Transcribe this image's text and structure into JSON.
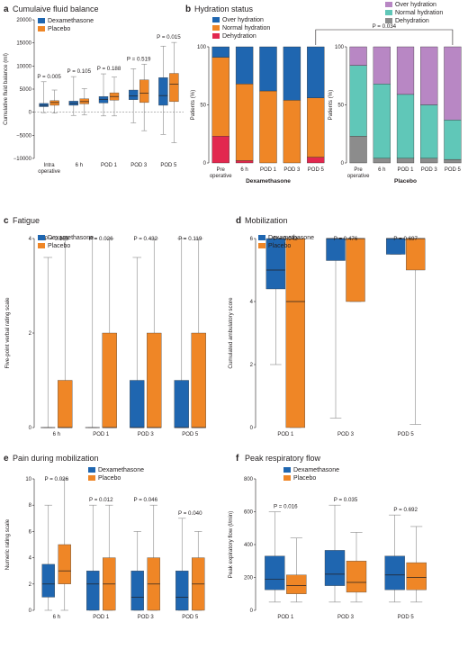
{
  "colors": {
    "dexamethasone": "#1f66b0",
    "placebo": "#ef8626",
    "over_hydration": "#b887c4",
    "normal_hydration": "#60c7b8",
    "dehydration_placebo": "#8c8c8c",
    "dehydration_dexa": "#e2284f",
    "dexa_over_hydration": "#1f66b0",
    "dexa_normal_hydration": "#ef8626",
    "whisker": "#8a8a8a",
    "text": "#231f20"
  },
  "chart_data": [
    {
      "id": "a",
      "letter": "a",
      "type": "boxplot",
      "title": "Cumulaive fluid balance",
      "ylabel": "Cumulative fluid balance (ml)",
      "ylim": [
        -10000,
        20000
      ],
      "yticks": [
        -10000,
        -5000,
        0,
        5000,
        10000,
        15000,
        20000
      ],
      "ytick_labels": [
        "−10000",
        "−5000",
        "0",
        "5000",
        "10000",
        "15000",
        "20000"
      ],
      "categories": [
        "Intra operative",
        "6 h",
        "POD 1",
        "POD 3",
        "POD 5"
      ],
      "category_lines": [
        [
          "Intra",
          "operative"
        ],
        [
          "6 h"
        ],
        [
          "POD 1"
        ],
        [
          "POD 3"
        ],
        [
          "POD 5"
        ]
      ],
      "pvalues": [
        "P = 0.005",
        "P = 0.105",
        "P = 0.188",
        "P = 0.519",
        "P = 0.015"
      ],
      "zero_line": true,
      "legend": [
        "Dexamethasone",
        "Placebo"
      ],
      "series": [
        {
          "name": "Dexamethasone",
          "boxes": [
            [
              -100,
              1200,
              1500,
              1900,
              6600
            ],
            [
              -700,
              1500,
              1900,
              2400,
              7700
            ],
            [
              -800,
              2000,
              2800,
              3400,
              8300
            ],
            [
              -2300,
              2700,
              3500,
              4800,
              9400
            ],
            [
              -4800,
              1500,
              3600,
              7500,
              14300
            ]
          ]
        },
        {
          "name": "Placebo",
          "boxes": [
            [
              -200,
              1500,
              2100,
              2500,
              4800
            ],
            [
              -600,
              1800,
              2300,
              2900,
              5100
            ],
            [
              -800,
              2600,
              3400,
              4200,
              7600
            ],
            [
              -4000,
              2100,
              4100,
              7000,
              10400
            ],
            [
              -6600,
              2300,
              6100,
              8400,
              15100
            ]
          ]
        }
      ]
    },
    {
      "id": "b",
      "letter": "b",
      "type": "stacked-bar",
      "title": "Hydration status",
      "ylabel": "Patients (%)",
      "ylim": [
        0,
        100
      ],
      "yticks": [
        0,
        50,
        100
      ],
      "ytick_labels": [
        "0",
        "50",
        "100"
      ],
      "categories": [
        "Pre operative",
        "6 h",
        "POD 1",
        "POD 3",
        "POD 5"
      ],
      "category_lines": [
        [
          "Pre",
          "operative"
        ],
        [
          "6 h"
        ],
        [
          "POD 1"
        ],
        [
          "POD 3"
        ],
        [
          "POD 5"
        ]
      ],
      "groups": [
        {
          "name": "Dexamethasone",
          "legend": [
            "Over hydration",
            "Normal hydration",
            "Dehydration"
          ],
          "stacks": [
            {
              "name": "Dehydration",
              "values": [
                23,
                2,
                0,
                0,
                5
              ]
            },
            {
              "name": "Normal hydration",
              "values": [
                68,
                66,
                62,
                54,
                51
              ]
            },
            {
              "name": "Over hydration",
              "values": [
                9,
                32,
                38,
                46,
                44
              ]
            }
          ]
        },
        {
          "name": "Placebo",
          "legend": [
            "Over hydration",
            "Normal hydration",
            "Dehydration"
          ],
          "stacks": [
            {
              "name": "Dehydration",
              "values": [
                23,
                4,
                4,
                4,
                3
              ]
            },
            {
              "name": "Normal hydration",
              "values": [
                61,
                64,
                55,
                46,
                34
              ]
            },
            {
              "name": "Over hydration",
              "values": [
                16,
                32,
                41,
                50,
                63
              ]
            }
          ]
        }
      ],
      "comparison_label": "P = 0.034"
    },
    {
      "id": "c",
      "letter": "c",
      "type": "boxplot",
      "title": "Fatigue",
      "ylabel": "Five-point verbal rating scale",
      "ylim": [
        0,
        4
      ],
      "yticks": [
        0,
        2,
        4
      ],
      "ytick_labels": [
        "0",
        "2",
        "4"
      ],
      "categories": [
        "6 h",
        "POD 1",
        "POD 3",
        "POD 5"
      ],
      "category_lines": [
        [
          "6 h"
        ],
        [
          "POD 1"
        ],
        [
          "POD 3"
        ],
        [
          "POD 5"
        ]
      ],
      "pvalues": [
        "P = 0.165",
        "P = 0.026",
        "P = 0.432",
        "P = 0.119"
      ],
      "legend": [
        "Dexamethasone",
        "Placebo"
      ],
      "series": [
        {
          "name": "Dexamethasone",
          "boxes": [
            [
              0,
              0,
              0,
              0,
              3.6
            ],
            [
              0,
              0,
              0,
              0,
              4
            ],
            [
              0,
              0,
              0,
              1,
              3.6
            ],
            [
              0,
              0,
              0,
              1,
              4
            ]
          ]
        },
        {
          "name": "Placebo",
          "boxes": [
            [
              0,
              0,
              0,
              1,
              4
            ],
            [
              0,
              0,
              0,
              2,
              4
            ],
            [
              0,
              0,
              0,
              2,
              4
            ],
            [
              0,
              0,
              0,
              2,
              4
            ]
          ]
        }
      ]
    },
    {
      "id": "d",
      "letter": "d",
      "type": "boxplot",
      "title": "Mobilization",
      "ylabel": "Cumulated ambulatory score",
      "ylim": [
        0,
        6
      ],
      "yticks": [
        0,
        2,
        4,
        6
      ],
      "ytick_labels": [
        "0",
        "2",
        "4",
        "6"
      ],
      "categories": [
        "POD 1",
        "POD 3",
        "POD 5"
      ],
      "category_lines": [
        [
          "POD 1"
        ],
        [
          "POD 3"
        ],
        [
          "POD 5"
        ]
      ],
      "pvalues": [
        "P = 0.042",
        "P = 0.476",
        "P = 0.697"
      ],
      "legend": [
        "Dexamethasone",
        "Placebo"
      ],
      "series": [
        {
          "name": "Dexamethasone",
          "boxes": [
            [
              2.0,
              4.4,
              5.0,
              6,
              6
            ],
            [
              0.3,
              5.3,
              6,
              6,
              6
            ],
            [
              5.5,
              5.5,
              6,
              6,
              6
            ]
          ]
        },
        {
          "name": "Placebo",
          "boxes": [
            [
              0,
              0,
              4.0,
              6,
              6
            ],
            [
              4.0,
              4.0,
              6,
              6,
              6
            ],
            [
              0.1,
              5.0,
              6,
              6,
              6
            ]
          ]
        }
      ]
    },
    {
      "id": "e",
      "letter": "e",
      "type": "boxplot",
      "title": "Pain during mobilization",
      "ylabel": "Numeric rating scale",
      "ylim": [
        0,
        10
      ],
      "yticks": [
        0,
        2,
        4,
        6,
        8,
        10
      ],
      "ytick_labels": [
        "0",
        "2",
        "4",
        "6",
        "8",
        "10"
      ],
      "categories": [
        "6 h",
        "POD 1",
        "POD 3",
        "POD 5"
      ],
      "category_lines": [
        [
          "6 h"
        ],
        [
          "POD 1"
        ],
        [
          "POD 3"
        ],
        [
          "POD 5"
        ]
      ],
      "pvalues": [
        "P = 0.026",
        "P = 0.012",
        "P = 0.046",
        "P = 0.040"
      ],
      "legend": [
        "Dexamethasone",
        "Placebo"
      ],
      "series": [
        {
          "name": "Dexamethasone",
          "boxes": [
            [
              0,
              1,
              2,
              3.5,
              8
            ],
            [
              0,
              0,
              2,
              3,
              8
            ],
            [
              0,
              0,
              1,
              3,
              6
            ],
            [
              0,
              0,
              1,
              3,
              7
            ]
          ]
        },
        {
          "name": "Placebo",
          "boxes": [
            [
              0,
              2,
              3,
              5,
              10
            ],
            [
              0,
              0,
              2,
              4,
              8
            ],
            [
              0,
              0,
              2,
              4,
              8
            ],
            [
              0,
              0,
              2,
              4,
              6
            ]
          ]
        }
      ]
    },
    {
      "id": "f",
      "letter": "f",
      "type": "boxplot",
      "title": "Peak respiratory flow",
      "ylabel": "Peak expiratory flow (l/min)",
      "ylim": [
        0,
        800
      ],
      "yticks": [
        0,
        200,
        400,
        600,
        800
      ],
      "ytick_labels": [
        "0",
        "200",
        "400",
        "600",
        "800"
      ],
      "categories": [
        "POD 1",
        "POD 3",
        "POD 5"
      ],
      "category_lines": [
        [
          "POD 1"
        ],
        [
          "POD 3"
        ],
        [
          "POD 5"
        ]
      ],
      "pvalues": [
        "P = 0.016",
        "P = 0.035",
        "P = 0.692"
      ],
      "legend": [
        "Dexamethasone",
        "Placebo"
      ],
      "series": [
        {
          "name": "Dexamethasone",
          "boxes": [
            [
              50,
              125,
              190,
              330,
              600
            ],
            [
              50,
              150,
              220,
              365,
              640
            ],
            [
              50,
              125,
              215,
              330,
              580
            ]
          ]
        },
        {
          "name": "Placebo",
          "boxes": [
            [
              50,
              100,
              150,
              215,
              440
            ],
            [
              50,
              110,
              170,
              300,
              475
            ],
            [
              50,
              125,
              200,
              290,
              510
            ]
          ]
        }
      ]
    }
  ]
}
